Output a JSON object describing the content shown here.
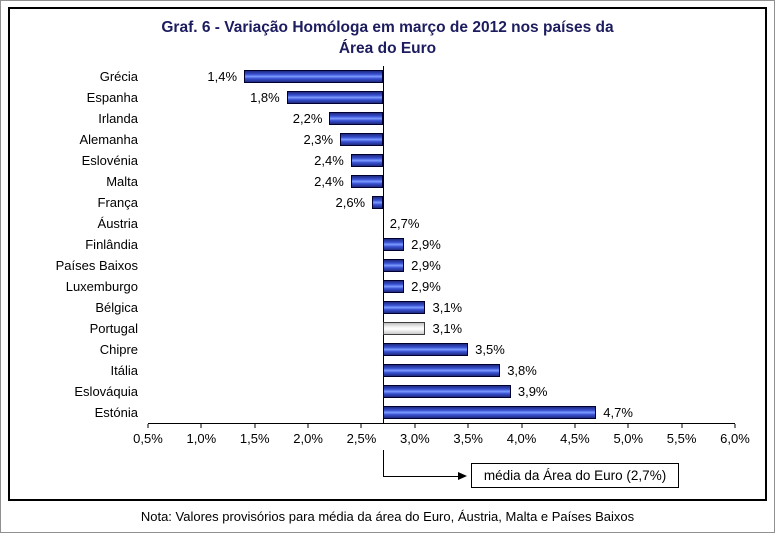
{
  "title_line1": "Graf. 6 - Variação Homóloga em março de 2012 nos países da",
  "title_line2": "Área do Euro",
  "note": "Nota: Valores provisórios para média da área do Euro, Áustria, Malta e Países Baixos",
  "chart_data": {
    "type": "bar",
    "orientation": "horizontal",
    "title": "Graf. 6 - Variação Homóloga em março de 2012 nos países da Área do Euro",
    "categories": [
      "Grécia",
      "Espanha",
      "Irlanda",
      "Alemanha",
      "Eslovénia",
      "Malta",
      "França",
      "Áustria",
      "Finlândia",
      "Países Baixos",
      "Luxemburgo",
      "Bélgica",
      "Portugal",
      "Chipre",
      "Itália",
      "Eslováquia",
      "Estónia"
    ],
    "values": [
      1.4,
      1.8,
      2.2,
      2.3,
      2.4,
      2.4,
      2.6,
      2.7,
      2.9,
      2.9,
      2.9,
      3.1,
      3.1,
      3.5,
      3.8,
      3.9,
      4.7
    ],
    "value_labels": [
      "1,4%",
      "1,8%",
      "2,2%",
      "2,3%",
      "2,4%",
      "2,4%",
      "2,6%",
      "2,7%",
      "2,9%",
      "2,9%",
      "2,9%",
      "3,1%",
      "3,1%",
      "3,5%",
      "3,8%",
      "3,9%",
      "4,7%"
    ],
    "baseline": 2.7,
    "annotation_label": "média da Área do Euro (2,7%)",
    "highlight_category": "Portugal",
    "x_tick_values": [
      0.5,
      1.0,
      1.5,
      2.0,
      2.5,
      3.0,
      3.5,
      4.0,
      4.5,
      5.0,
      5.5,
      6.0
    ],
    "x_tick_labels": [
      "0,5%",
      "1,0%",
      "1,5%",
      "2,0%",
      "2,5%",
      "3,0%",
      "3,5%",
      "4,0%",
      "4,5%",
      "5,0%",
      "5,5%",
      "6,0%"
    ],
    "xlim": [
      0.5,
      6.0
    ],
    "grid": false,
    "legend": "none",
    "colors": {
      "bar": "#3850d2",
      "bar_edge": "#000030",
      "highlight_bar": "#ffffff",
      "axis": "#000000",
      "title_text": "#1c1c5e"
    }
  }
}
